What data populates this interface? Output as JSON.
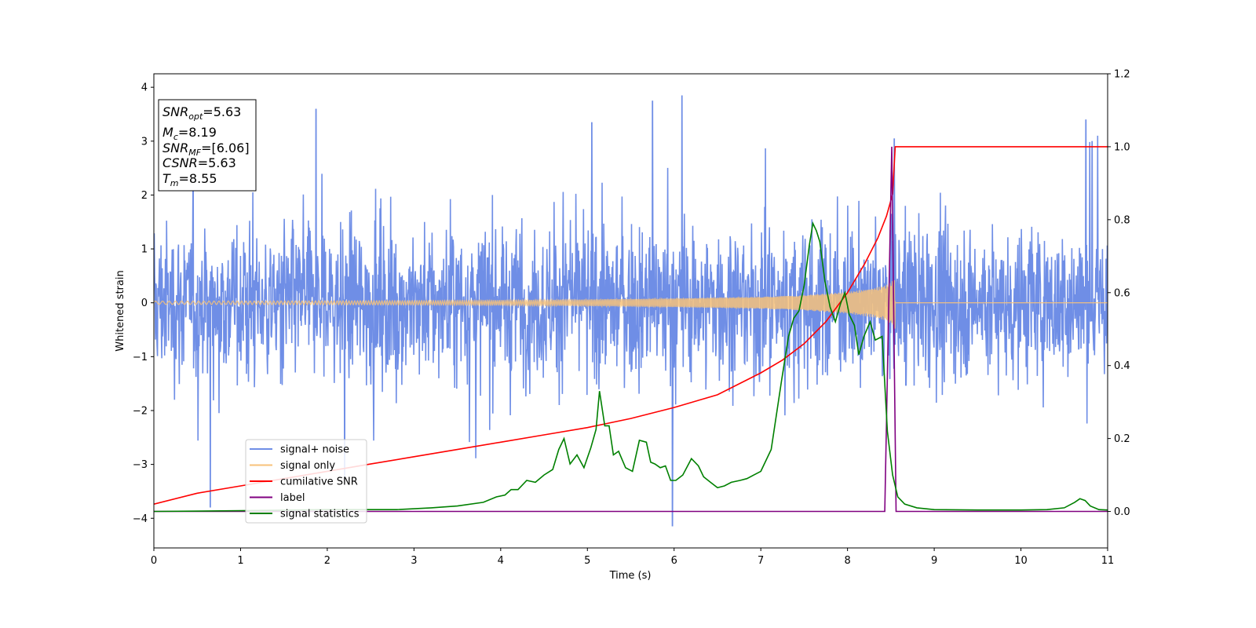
{
  "chart_data": {
    "type": "line",
    "xlabel": "Time (s)",
    "ylabel": "Whitened strain",
    "xlim": [
      0,
      11
    ],
    "ylim_left": [
      -4.55,
      4.25
    ],
    "ylim_right": [
      -0.1,
      1.2
    ],
    "x_ticks": [
      0,
      1,
      2,
      3,
      4,
      5,
      6,
      7,
      8,
      9,
      10,
      11
    ],
    "y_ticks_left": [
      4,
      3,
      2,
      1,
      0,
      -1,
      -2,
      -3,
      -4
    ],
    "y_tick_labels_left": [
      "4",
      "3",
      "2",
      "1",
      "0",
      "−1",
      "−2",
      "−3",
      "−4"
    ],
    "y_ticks_right": [
      1.2,
      1.0,
      0.8,
      0.6,
      0.4,
      0.2,
      0.0
    ],
    "y_tick_labels_right": [
      "1.2",
      "1.0",
      "0.8",
      "0.6",
      "0.4",
      "0.2",
      "0.0"
    ],
    "legend_placement": "lower-left",
    "legend": [
      {
        "name": "signal+ noise",
        "color": "#6f8ee6"
      },
      {
        "name": "signal only",
        "color": "#f7c27a"
      },
      {
        "name": "cumilative SNR",
        "color": "#ff0000"
      },
      {
        "name": "label",
        "color": "#800080"
      },
      {
        "name": "signal statistics",
        "color": "#008000"
      }
    ],
    "info_box": [
      {
        "base": "SNR",
        "sub": "opt",
        "value": "=5.63"
      },
      {
        "base": "M",
        "sub": "c",
        "value": "=8.19"
      },
      {
        "base": "SNR",
        "sub": "MF",
        "value": "=[6.06]"
      },
      {
        "base": "CSNR",
        "sub": "",
        "value": "=5.63"
      },
      {
        "base": "T",
        "sub": "m",
        "value": "=8.55"
      }
    ],
    "series": [
      {
        "name": "signal+ noise",
        "axis": "left",
        "color": "#6f8ee6",
        "x_range": [
          0,
          11
        ],
        "typical_amplitude": 1.0,
        "peak_excursions": [
          [
            0.65,
            -3.8
          ],
          [
            1.87,
            3.6
          ],
          [
            2.2,
            -3.3
          ],
          [
            5.05,
            3.35
          ],
          [
            5.75,
            3.75
          ],
          [
            5.98,
            -4.15
          ],
          [
            6.09,
            3.85
          ],
          [
            8.54,
            3.05
          ],
          [
            10.75,
            3.4
          ],
          [
            10.82,
            3.0
          ]
        ]
      },
      {
        "name": "signal only",
        "axis": "left",
        "color": "#f7c27a",
        "x_range": [
          0,
          8.55
        ],
        "envelope": [
          [
            0,
            0.03
          ],
          [
            2,
            0.035
          ],
          [
            4,
            0.045
          ],
          [
            5,
            0.06
          ],
          [
            6,
            0.08
          ],
          [
            7,
            0.11
          ],
          [
            7.5,
            0.14
          ],
          [
            8,
            0.2
          ],
          [
            8.3,
            0.27
          ],
          [
            8.45,
            0.33
          ],
          [
            8.53,
            0.42
          ],
          [
            8.55,
            0.5
          ]
        ]
      },
      {
        "name": "cumilative SNR",
        "axis": "right",
        "color": "#ff0000",
        "x": [
          0,
          0.5,
          1,
          1.5,
          2,
          2.5,
          3,
          3.5,
          4,
          4.5,
          5,
          5.5,
          6,
          6.5,
          7,
          7.25,
          7.5,
          7.75,
          8,
          8.2,
          8.35,
          8.45,
          8.52,
          8.55,
          11
        ],
        "y": [
          0.02,
          0.05,
          0.07,
          0.09,
          0.11,
          0.13,
          0.15,
          0.17,
          0.19,
          0.21,
          0.23,
          0.255,
          0.285,
          0.32,
          0.38,
          0.415,
          0.46,
          0.52,
          0.6,
          0.68,
          0.75,
          0.81,
          0.87,
          1.0,
          1.0
        ]
      },
      {
        "name": "label",
        "axis": "right",
        "color": "#800080",
        "x": [
          0,
          8.43,
          8.51,
          8.56,
          11
        ],
        "y": [
          0.0,
          0.0,
          1.0,
          0.0,
          0.0
        ]
      },
      {
        "name": "signal statistics",
        "axis": "right",
        "color": "#008000",
        "x": [
          0,
          1,
          2,
          2.8,
          3.2,
          3.5,
          3.8,
          3.95,
          4.05,
          4.12,
          4.2,
          4.3,
          4.4,
          4.5,
          4.6,
          4.67,
          4.73,
          4.8,
          4.88,
          4.96,
          5.04,
          5.1,
          5.14,
          5.2,
          5.25,
          5.3,
          5.36,
          5.44,
          5.52,
          5.6,
          5.68,
          5.73,
          5.78,
          5.84,
          5.9,
          5.96,
          6.02,
          6.1,
          6.2,
          6.28,
          6.34,
          6.42,
          6.5,
          6.58,
          6.66,
          6.76,
          6.84,
          6.92,
          7.0,
          7.12,
          7.24,
          7.32,
          7.38,
          7.44,
          7.5,
          7.56,
          7.6,
          7.64,
          7.68,
          7.74,
          7.8,
          7.86,
          7.92,
          7.97,
          8.02,
          8.08,
          8.13,
          8.19,
          8.26,
          8.32,
          8.4,
          8.46,
          8.52,
          8.58,
          8.66,
          8.8,
          9.0,
          9.5,
          10.0,
          10.3,
          10.5,
          10.62,
          10.68,
          10.74,
          10.8,
          10.9,
          11.0
        ],
        "y": [
          0.0,
          0.002,
          0.005,
          0.005,
          0.01,
          0.015,
          0.025,
          0.04,
          0.045,
          0.06,
          0.06,
          0.085,
          0.08,
          0.1,
          0.115,
          0.17,
          0.2,
          0.13,
          0.155,
          0.12,
          0.175,
          0.225,
          0.33,
          0.235,
          0.235,
          0.155,
          0.165,
          0.12,
          0.11,
          0.195,
          0.19,
          0.135,
          0.13,
          0.12,
          0.125,
          0.085,
          0.085,
          0.1,
          0.145,
          0.125,
          0.095,
          0.08,
          0.065,
          0.07,
          0.08,
          0.085,
          0.09,
          0.1,
          0.11,
          0.17,
          0.36,
          0.48,
          0.53,
          0.55,
          0.62,
          0.73,
          0.79,
          0.77,
          0.74,
          0.63,
          0.56,
          0.52,
          0.57,
          0.6,
          0.54,
          0.51,
          0.43,
          0.48,
          0.52,
          0.47,
          0.48,
          0.22,
          0.1,
          0.04,
          0.02,
          0.01,
          0.005,
          0.004,
          0.004,
          0.005,
          0.01,
          0.025,
          0.035,
          0.03,
          0.015,
          0.005,
          0.004
        ]
      }
    ]
  }
}
